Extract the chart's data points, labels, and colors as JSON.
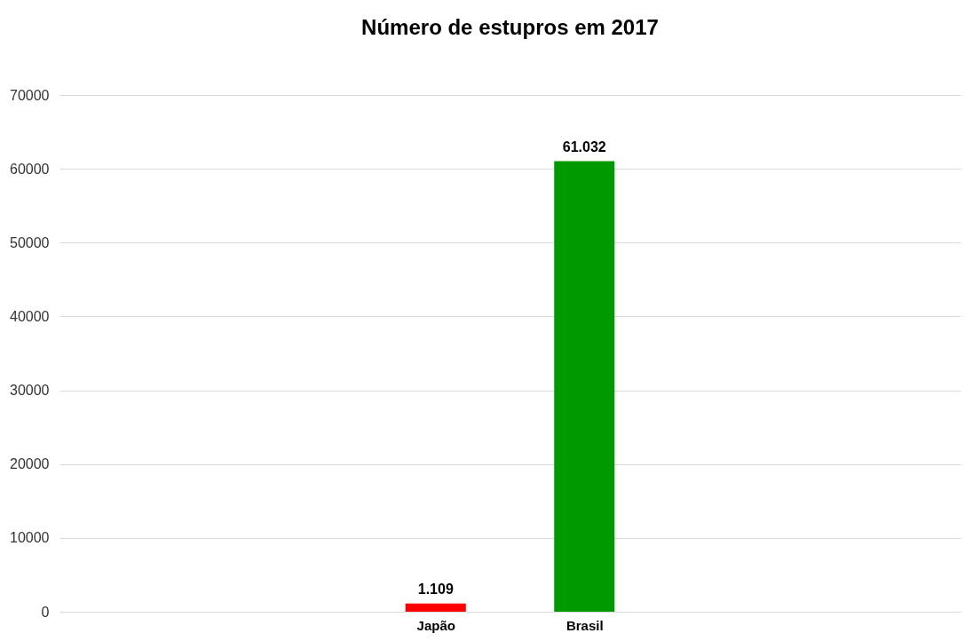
{
  "chart_data": {
    "type": "bar",
    "title": "Número de estupros em 2017",
    "categories": [
      "Japão",
      "Brasil"
    ],
    "values": [
      1109,
      61032
    ],
    "colors": [
      "#ff0000",
      "#009900"
    ],
    "value_labels": [
      "1.109",
      "61.032"
    ],
    "ylim": [
      0,
      70000
    ],
    "yticks": [
      0,
      10000,
      20000,
      30000,
      40000,
      50000,
      60000,
      70000
    ],
    "grid": "y"
  }
}
